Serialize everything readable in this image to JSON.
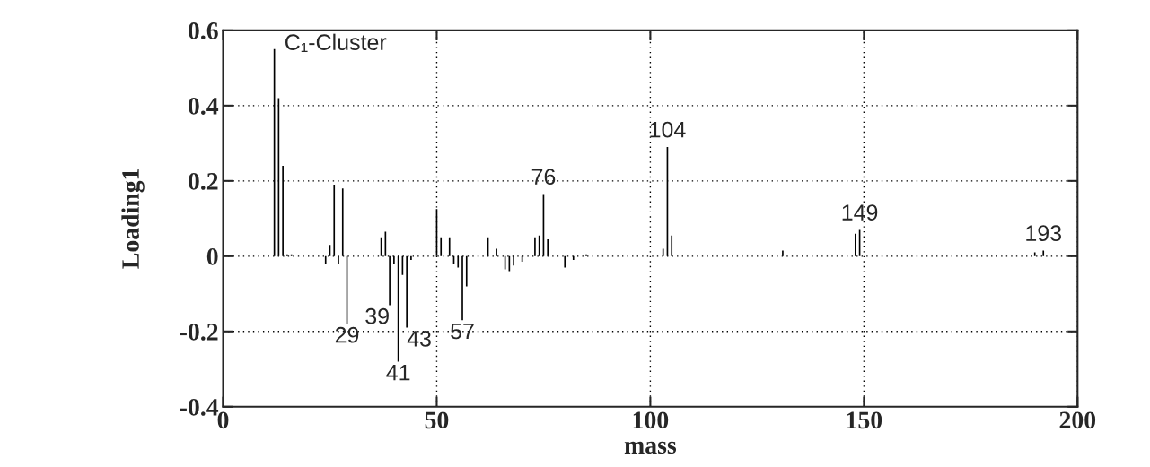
{
  "chart_data": {
    "type": "bar",
    "xlabel": "mass",
    "ylabel": "Loading1",
    "x": [
      12,
      13,
      14,
      15,
      16,
      24,
      25,
      26,
      27,
      28,
      29,
      37,
      38,
      39,
      40,
      41,
      42,
      43,
      44,
      50,
      51,
      53,
      54,
      55,
      56,
      57,
      62,
      64,
      66,
      67,
      68,
      70,
      73,
      74,
      75,
      76,
      80,
      82,
      85,
      103,
      104,
      105,
      131,
      148,
      149,
      190,
      192
    ],
    "series": [
      {
        "color": "#000000",
        "values": [
          0.55,
          0.42,
          0.24,
          0.005,
          0.005,
          -0.02,
          0.03,
          0.19,
          -0.02,
          0.18,
          -0.18,
          0.05,
          0.065,
          -0.13,
          -0.02,
          -0.28,
          -0.05,
          -0.19,
          -0.01,
          0.125,
          0.05,
          0.05,
          -0.02,
          -0.03,
          -0.17,
          -0.08,
          0.05,
          0.02,
          -0.035,
          -0.04,
          -0.025,
          -0.015,
          0.05,
          0.055,
          0.165,
          0.045,
          -0.03,
          -0.01,
          0.005,
          0.02,
          0.29,
          0.055,
          0.015,
          0.06,
          0.07,
          0.01,
          0.015
        ]
      }
    ],
    "xlim": [
      0,
      200
    ],
    "xticks": [
      0,
      50,
      100,
      150,
      200
    ],
    "ylim": [
      -0.4,
      0.6
    ],
    "yticks": [
      -0.4,
      -0.2,
      0,
      0.2,
      0.4,
      0.6
    ],
    "grid": true,
    "annotations": [
      {
        "text": "C₁-Cluster",
        "x": 12,
        "y": 0.55
      },
      {
        "text": "29",
        "x": 29,
        "y": -0.18
      },
      {
        "text": "39",
        "x": 39,
        "y": -0.13
      },
      {
        "text": "41",
        "x": 41,
        "y": -0.28
      },
      {
        "text": "43",
        "x": 43,
        "y": -0.19
      },
      {
        "text": "57",
        "x": 56,
        "y": -0.17
      },
      {
        "text": "76",
        "x": 75,
        "y": 0.165
      },
      {
        "text": "104",
        "x": 104,
        "y": 0.29
      },
      {
        "text": "149",
        "x": 149,
        "y": 0.07
      },
      {
        "text": "193",
        "x": 192,
        "y": 0.015
      }
    ]
  }
}
